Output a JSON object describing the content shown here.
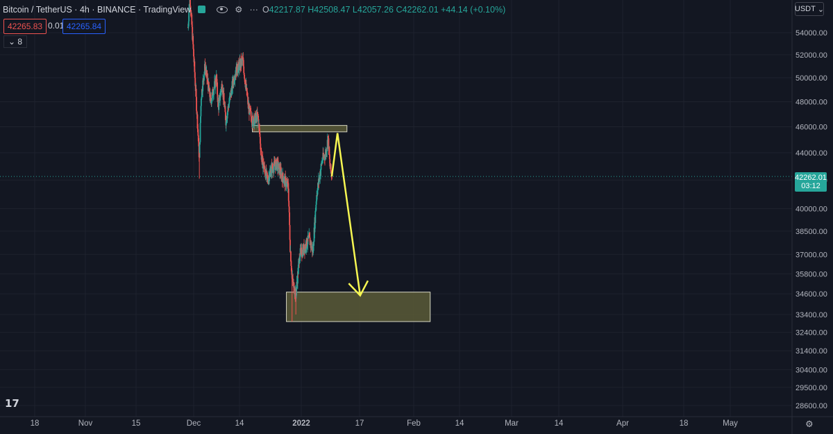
{
  "header": {
    "symbol": "Bitcoin / TetherUS",
    "interval": "4h",
    "exchange": "BINANCE",
    "platform": "TradingView",
    "status_color": "#26a69a",
    "ohlc": "42217.87 H42508.47 L42057.26 C42262.01 +44.14 (+0.10%)"
  },
  "quote": {
    "sell": "42265.83",
    "spread": "0.01",
    "buy": "42265.84"
  },
  "indicators_badge": "8",
  "currency_selector": "USDT",
  "current_price": {
    "value": "42262.01",
    "countdown": "03:12",
    "color": "#26a69a"
  },
  "colors": {
    "up": "#26a69a",
    "down": "#ef5350",
    "background": "#131722",
    "zone_fill": "#5a5a37",
    "arrow": "#f7f752"
  },
  "chart_data": {
    "type": "candlestick",
    "price_scale": "log",
    "y_ticks": [
      28600,
      29500,
      30400,
      31400,
      32400,
      33400,
      34600,
      35800,
      37000,
      38500,
      40000,
      42000,
      44000,
      46000,
      48000,
      50000,
      52000,
      54000
    ],
    "x_ticks": [
      "18",
      "Nov",
      "15",
      "Dec",
      "14",
      "2022",
      "17",
      "Feb",
      "14",
      "Mar",
      "14",
      "Apr",
      "18",
      "May"
    ],
    "current_price": 42262.01,
    "price_path": [
      {
        "date": "2021-11-28",
        "price": 54500
      },
      {
        "date": "2021-11-29",
        "price": 57500
      },
      {
        "date": "2021-12-04",
        "price": 43500
      },
      {
        "date": "2021-12-05",
        "price": 48500
      },
      {
        "date": "2021-12-07",
        "price": 51000
      },
      {
        "date": "2021-12-10",
        "price": 48000
      },
      {
        "date": "2021-12-13",
        "price": 50000
      },
      {
        "date": "2021-12-14",
        "price": 47500
      },
      {
        "date": "2021-12-16",
        "price": 49500
      },
      {
        "date": "2021-12-18",
        "price": 46500
      },
      {
        "date": "2021-12-21",
        "price": 49000
      },
      {
        "date": "2021-12-23",
        "price": 50500
      },
      {
        "date": "2021-12-27",
        "price": 51500
      },
      {
        "date": "2021-12-28",
        "price": 50000
      },
      {
        "date": "2021-12-30",
        "price": 47500
      },
      {
        "date": "2022-01-01",
        "price": 46500
      },
      {
        "date": "2022-01-04",
        "price": 46800
      },
      {
        "date": "2022-01-06",
        "price": 43500
      },
      {
        "date": "2022-01-09",
        "price": 42000
      },
      {
        "date": "2022-01-11",
        "price": 42800
      },
      {
        "date": "2022-01-14",
        "price": 43200
      },
      {
        "date": "2022-01-17",
        "price": 42200
      },
      {
        "date": "2022-01-20",
        "price": 41500
      },
      {
        "date": "2022-01-21",
        "price": 37500
      },
      {
        "date": "2022-01-22",
        "price": 35500
      },
      {
        "date": "2022-01-24",
        "price": 34500
      },
      {
        "date": "2022-01-26",
        "price": 37000
      },
      {
        "date": "2022-01-28",
        "price": 37300
      },
      {
        "date": "2022-01-31",
        "price": 38000
      },
      {
        "date": "2022-02-02",
        "price": 37200
      },
      {
        "date": "2022-02-04",
        "price": 41000
      },
      {
        "date": "2022-02-07",
        "price": 43500
      },
      {
        "date": "2022-02-09",
        "price": 44000
      },
      {
        "date": "2022-02-10",
        "price": 45200
      },
      {
        "date": "2022-02-11",
        "price": 43000
      },
      {
        "date": "2022-02-12",
        "price": 42262
      }
    ],
    "zones": [
      {
        "name": "resistance",
        "from": "2022-01-01",
        "to": "2022-02-20",
        "low": 45600,
        "high": 46100
      },
      {
        "name": "support",
        "from": "2022-01-19",
        "to": "2022-04-05",
        "low": 33000,
        "high": 34700
      }
    ],
    "projection": [
      {
        "date": "2022-02-12",
        "price": 42262
      },
      {
        "date": "2022-02-15",
        "price": 45500
      },
      {
        "date": "2022-02-27",
        "price": 34500
      }
    ]
  }
}
